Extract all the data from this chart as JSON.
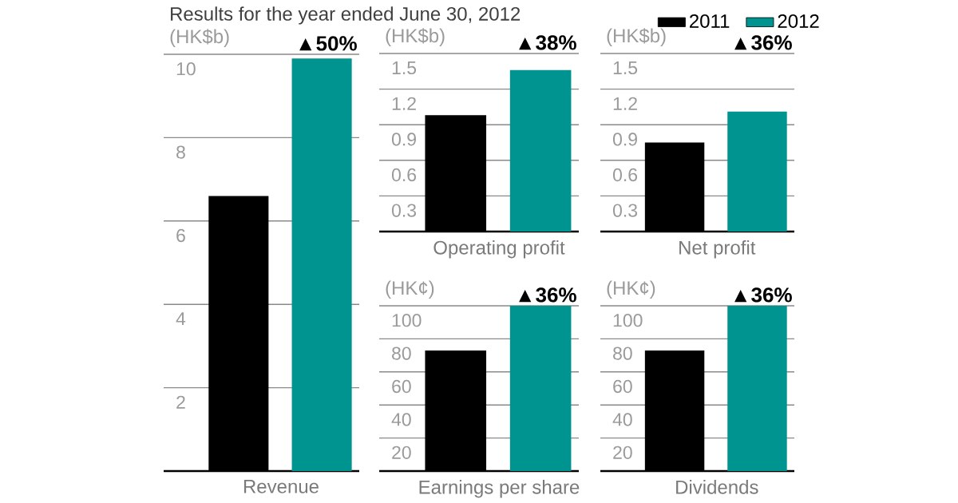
{
  "chart_data": [
    {
      "type": "bar",
      "title": "Results for the year ended June 30, 2012",
      "ylabel": "(HK$b)",
      "xlabel": "Revenue",
      "annotations": [
        "▲50%"
      ],
      "categories": [
        null
      ],
      "series": [
        {
          "name": "2011",
          "color": "#000000",
          "values": [
            6.6
          ]
        },
        {
          "name": "2012",
          "color": "#009490",
          "values": [
            9.9
          ]
        }
      ],
      "ylim": [
        0,
        10
      ],
      "yticks": [
        2,
        4,
        6,
        8,
        10
      ],
      "grid": "y",
      "legend": "top right"
    },
    {
      "type": "bar",
      "ylabel": "(HK$b)",
      "xlabel": "Operating profit",
      "annotations": [
        "▲38%"
      ],
      "categories": [
        null
      ],
      "series": [
        {
          "color": "#000000",
          "values": [
            0.98
          ]
        },
        {
          "color": "#009490",
          "values": [
            1.36
          ]
        }
      ],
      "ylim": [
        0,
        1.5
      ],
      "yticks": [
        0.3,
        0.6,
        0.9,
        1.2,
        1.5
      ],
      "grid": "y"
    },
    {
      "type": "bar",
      "ylabel": "(HK$b)",
      "xlabel": "Net profit",
      "annotations": [
        "▲36%"
      ],
      "categories": [
        null
      ],
      "series": [
        {
          "color": "#000000",
          "values": [
            0.75
          ]
        },
        {
          "color": "#009490",
          "values": [
            1.01
          ]
        }
      ],
      "ylim": [
        0,
        1.5
      ],
      "yticks": [
        0.3,
        0.6,
        0.9,
        1.2,
        1.5
      ],
      "grid": "y"
    },
    {
      "type": "bar",
      "ylabel": "(HK¢)",
      "xlabel": "Earnings per share",
      "annotations": [
        "▲36%"
      ],
      "categories": [
        null
      ],
      "series": [
        {
          "color": "#000000",
          "values": [
            73
          ]
        },
        {
          "color": "#009490",
          "values": [
            100
          ]
        }
      ],
      "ylim": [
        0,
        100
      ],
      "yticks": [
        20,
        40,
        60,
        80,
        100
      ],
      "grid": "y"
    },
    {
      "type": "bar",
      "ylabel": "(HK¢)",
      "xlabel": "Dividends",
      "annotations": [
        "▲36%"
      ],
      "categories": [
        null
      ],
      "series": [
        {
          "color": "#000000",
          "values": [
            73
          ]
        },
        {
          "color": "#009490",
          "values": [
            100
          ]
        }
      ],
      "ylim": [
        0,
        100
      ],
      "yticks": [
        20,
        40,
        60,
        80,
        100
      ],
      "grid": "y"
    }
  ]
}
